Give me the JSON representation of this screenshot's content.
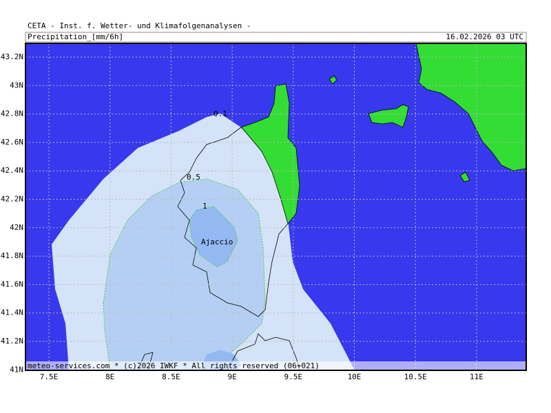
{
  "header": {
    "source": "CETA - Inst. f. Wetter- und Klimafolgenanalysen -",
    "title": "Precipitation_[mm/6h]",
    "valid_time": "16.02.2026 03 UTC"
  },
  "map": {
    "lat_labels": [
      "43.2N",
      "43N",
      "42.8N",
      "42.6N",
      "42.4N",
      "42.2N",
      "42N",
      "41.8N",
      "41.6N",
      "41.4N",
      "41.2N",
      "41N"
    ],
    "lon_labels": [
      "7.5E",
      "8E",
      "8.5E",
      "9E",
      "9.5E",
      "10E",
      "10.5E",
      "11E"
    ],
    "contour_labels": [
      "0.1",
      "0.5",
      "1"
    ],
    "place": "Ajaccio",
    "footer": "meteo-services.com * (c)2026 IWKF * All rights reserved (06+021)"
  }
}
